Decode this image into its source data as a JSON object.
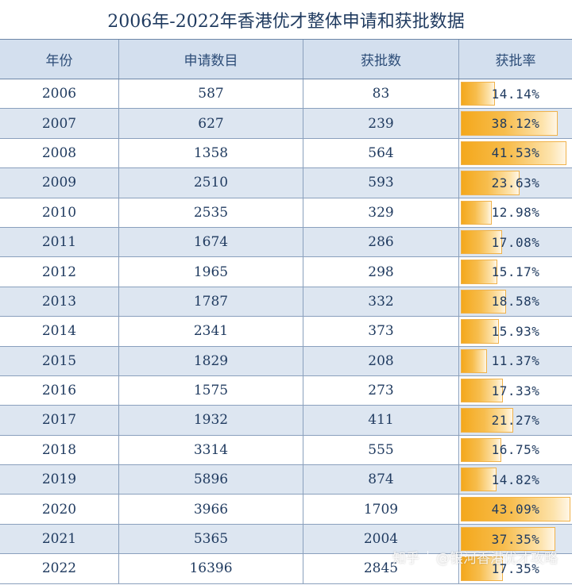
{
  "title": "2006年-2022年香港优才整体申请和获批数据",
  "headers": {
    "year": "年份",
    "applications": "申请数目",
    "approved": "获批数",
    "rate": "获批率"
  },
  "rows": [
    {
      "year": "2006",
      "applications": "587",
      "approved": "83",
      "rate": "14.14%",
      "rate_value": 14.14
    },
    {
      "year": "2007",
      "applications": "627",
      "approved": "239",
      "rate": "38.12%",
      "rate_value": 38.12
    },
    {
      "year": "2008",
      "applications": "1358",
      "approved": "564",
      "rate": "41.53%",
      "rate_value": 41.53
    },
    {
      "year": "2009",
      "applications": "2510",
      "approved": "593",
      "rate": "23.63%",
      "rate_value": 23.63
    },
    {
      "year": "2010",
      "applications": "2535",
      "approved": "329",
      "rate": "12.98%",
      "rate_value": 12.98
    },
    {
      "year": "2011",
      "applications": "1674",
      "approved": "286",
      "rate": "17.08%",
      "rate_value": 17.08
    },
    {
      "year": "2012",
      "applications": "1965",
      "approved": "298",
      "rate": "15.17%",
      "rate_value": 15.17
    },
    {
      "year": "2013",
      "applications": "1787",
      "approved": "332",
      "rate": "18.58%",
      "rate_value": 18.58
    },
    {
      "year": "2014",
      "applications": "2341",
      "approved": "373",
      "rate": "15.93%",
      "rate_value": 15.93
    },
    {
      "year": "2015",
      "applications": "1829",
      "approved": "208",
      "rate": "11.37%",
      "rate_value": 11.37
    },
    {
      "year": "2016",
      "applications": "1575",
      "approved": "273",
      "rate": "17.33%",
      "rate_value": 17.33
    },
    {
      "year": "2017",
      "applications": "1932",
      "approved": "411",
      "rate": "21.27%",
      "rate_value": 21.27
    },
    {
      "year": "2018",
      "applications": "3314",
      "approved": "555",
      "rate": "16.75%",
      "rate_value": 16.75
    },
    {
      "year": "2019",
      "applications": "5896",
      "approved": "874",
      "rate": "14.82%",
      "rate_value": 14.82
    },
    {
      "year": "2020",
      "applications": "3966",
      "approved": "1709",
      "rate": "43.09%",
      "rate_value": 43.09
    },
    {
      "year": "2021",
      "applications": "5365",
      "approved": "2004",
      "rate": "37.35%",
      "rate_value": 37.35
    },
    {
      "year": "2022",
      "applications": "16396",
      "approved": "2845",
      "rate": "17.35%",
      "rate_value": 17.35
    }
  ],
  "rate_bar_max": 43.09,
  "watermark": {
    "site": "知乎",
    "author": "@银河香港优才攻略"
  },
  "colors": {
    "header_bg": "#d3dfee",
    "alt_row_bg": "#dde6f1",
    "bar": "#f4a81c",
    "text": "#1f3a5f"
  }
}
